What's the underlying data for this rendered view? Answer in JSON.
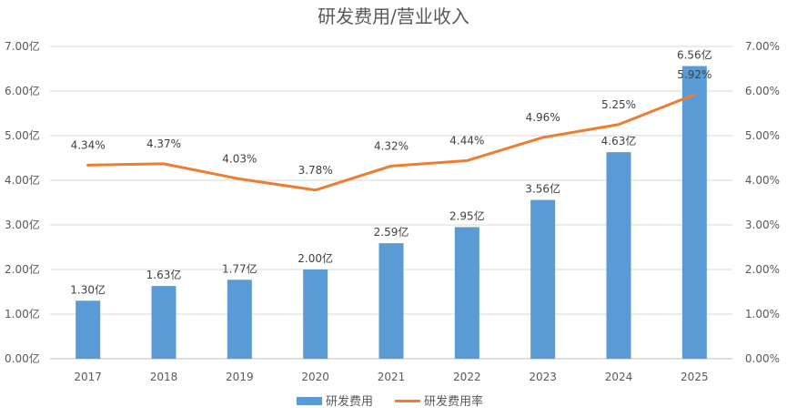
{
  "chart_data": {
    "type": "bar",
    "title": "研发费用/营业收入",
    "categories": [
      "2017",
      "2018",
      "2019",
      "2020",
      "2021",
      "2022",
      "2023",
      "2024",
      "2025"
    ],
    "series": [
      {
        "name": "研发费用",
        "type": "bar",
        "axis": "left",
        "values": [
          1.3,
          1.63,
          1.77,
          2.0,
          2.59,
          2.95,
          3.56,
          4.63,
          6.56
        ],
        "labels": [
          "1.30亿",
          "1.63亿",
          "1.77亿",
          "2.00亿",
          "2.59亿",
          "2.95亿",
          "3.56亿",
          "4.63亿",
          "6.56亿"
        ],
        "color": "#5B9BD5"
      },
      {
        "name": "研发费用率",
        "type": "line",
        "axis": "right",
        "values": [
          4.34,
          4.37,
          4.03,
          3.78,
          4.32,
          4.44,
          4.96,
          5.25,
          5.92
        ],
        "labels": [
          "4.34%",
          "4.37%",
          "4.03%",
          "3.78%",
          "4.32%",
          "4.44%",
          "4.96%",
          "5.25%",
          "5.92%"
        ],
        "color": "#ED7D31"
      }
    ],
    "left_axis": {
      "ylim": [
        0,
        7
      ],
      "ticks": [
        "0.00亿",
        "1.00亿",
        "2.00亿",
        "3.00亿",
        "4.00亿",
        "5.00亿",
        "6.00亿",
        "7.00亿"
      ]
    },
    "right_axis": {
      "ylim": [
        0,
        7
      ],
      "ticks": [
        "0.00%",
        "1.00%",
        "2.00%",
        "3.00%",
        "4.00%",
        "5.00%",
        "6.00%",
        "7.00%"
      ]
    },
    "grid": true,
    "legend": "bottom"
  }
}
